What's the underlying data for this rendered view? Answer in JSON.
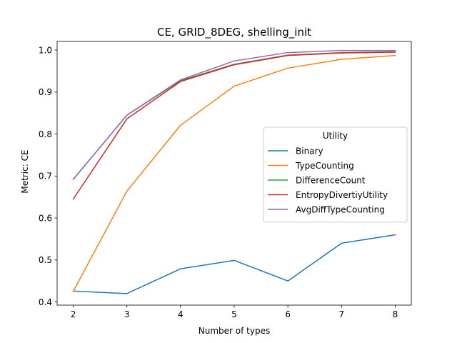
{
  "chart_data": {
    "type": "line",
    "title": "CE, GRID_8DEG, shelling_init",
    "xlabel": "Number of types",
    "ylabel": "Metric: CE",
    "x": [
      2,
      3,
      4,
      5,
      6,
      7,
      8
    ],
    "xlim": [
      1.7,
      8.3
    ],
    "ylim": [
      0.3925,
      1.0205
    ],
    "xticks": [
      2,
      3,
      4,
      5,
      6,
      7,
      8
    ],
    "yticks": [
      0.4,
      0.5,
      0.6,
      0.7,
      0.8,
      0.9,
      1.0
    ],
    "ytick_labels": [
      "0.4",
      "0.5",
      "0.6",
      "0.7",
      "0.8",
      "0.9",
      "1.0"
    ],
    "grid": false,
    "legend": {
      "title": "Utility",
      "position": "center-right"
    },
    "series": [
      {
        "name": "Binary",
        "color": "#1f77b4",
        "values": [
          0.426,
          0.42,
          0.479,
          0.499,
          0.45,
          0.54,
          0.56
        ]
      },
      {
        "name": "TypeCounting",
        "color": "#ff7f0e",
        "values": [
          0.425,
          0.664,
          0.821,
          0.914,
          0.957,
          0.978,
          0.987
        ]
      },
      {
        "name": "DifferenceCount",
        "color": "#2ca02c",
        "values": [
          0.692,
          0.845,
          0.927,
          0.966,
          0.988,
          0.994,
          0.996
        ]
      },
      {
        "name": "EntropyDivertiyUtility",
        "color": "#d62728",
        "values": [
          0.645,
          0.836,
          0.925,
          0.965,
          0.987,
          0.993,
          0.995
        ]
      },
      {
        "name": "AvgDiffTypeCounting",
        "color": "#9467bd",
        "values": [
          0.692,
          0.845,
          0.929,
          0.974,
          0.994,
          0.999,
          0.999
        ]
      }
    ]
  }
}
